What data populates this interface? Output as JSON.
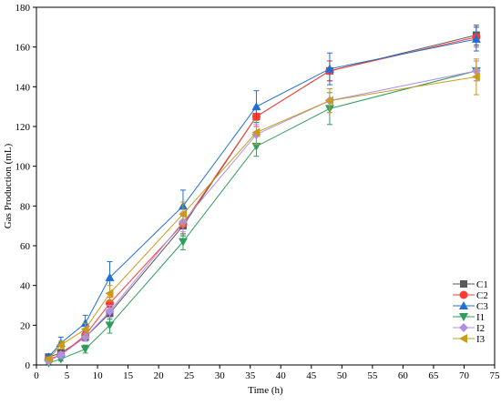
{
  "chart_data": {
    "type": "line",
    "title": "",
    "xlabel": "Time (h)",
    "ylabel": "Gas Production (mL)",
    "xlim": [
      0,
      75
    ],
    "ylim": [
      0,
      180
    ],
    "xticks": [
      "0",
      "5",
      "10",
      "15",
      "20",
      "25",
      "30",
      "35",
      "40",
      "45",
      "50",
      "55",
      "60",
      "65",
      "70",
      "75"
    ],
    "yticks": [
      "0",
      "20",
      "40",
      "60",
      "80",
      "100",
      "120",
      "140",
      "160",
      "180"
    ],
    "x": [
      2,
      4,
      8,
      12,
      24,
      36,
      48,
      72
    ],
    "grid": false,
    "legend_position": "bottom-right",
    "series": [
      {
        "name": "C1",
        "color": "#595959",
        "marker": "square",
        "values": [
          4,
          6,
          14,
          26,
          70,
          125,
          148,
          166
        ],
        "errors": [
          1,
          1.5,
          2,
          3,
          5,
          5,
          5,
          5
        ]
      },
      {
        "name": "C2",
        "color": "#ff3b30",
        "marker": "circle",
        "values": [
          3,
          5,
          15,
          31,
          71,
          125,
          148,
          165
        ],
        "errors": [
          1,
          1.5,
          2,
          3,
          5,
          5,
          5,
          5
        ]
      },
      {
        "name": "C3",
        "color": "#1f6fd6",
        "marker": "triangle-up",
        "values": [
          4,
          11,
          21,
          44,
          80,
          130,
          149,
          164
        ],
        "errors": [
          1.5,
          3,
          4,
          8,
          8,
          8,
          8,
          6
        ]
      },
      {
        "name": "I1",
        "color": "#2e9e5b",
        "marker": "triangle-down",
        "values": [
          1,
          3,
          8,
          20,
          62,
          110,
          129,
          148
        ],
        "errors": [
          0.5,
          1,
          2,
          4,
          4,
          5,
          8,
          5
        ]
      },
      {
        "name": "I2",
        "color": "#b08fe8",
        "marker": "diamond",
        "values": [
          2,
          5,
          14,
          27,
          72,
          116,
          133,
          148
        ],
        "errors": [
          1,
          1.5,
          2,
          3,
          5,
          5,
          6,
          5
        ]
      },
      {
        "name": "I3",
        "color": "#c99a1c",
        "marker": "triangle-left",
        "values": [
          3,
          10,
          18,
          36,
          76,
          117,
          133,
          145
        ],
        "errors": [
          1,
          2,
          3,
          4,
          6,
          6,
          6,
          9
        ]
      }
    ]
  }
}
